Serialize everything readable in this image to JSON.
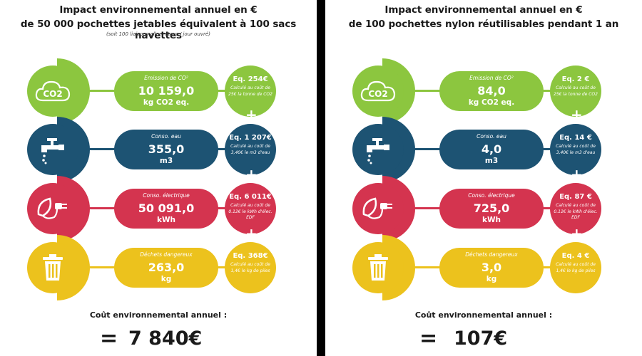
{
  "panels": [
    {
      "title_line1": "Impact environnemental annuel en €",
      "title_line2": "de 50 000 pochettes jetables équivalent à 100 sacs navettes",
      "subtitle": "(soit 100 liaisons aller-retour / jour ouvré)",
      "rows": [
        {
          "label": "Emission de CO²",
          "value": "10 159,0",
          "unit": "kg CO2 eq.",
          "cost": "Eq. 254€",
          "note": "Calculé au coût de 25€ la tonne de CO2"
        },
        {
          "label": "Conso. eau",
          "value": "355,0",
          "unit": "m3",
          "cost": "Eq. 1 207€",
          "note": "Calculé au coût de 3,40€ le m3 d'eau"
        },
        {
          "label": "Conso. électrique",
          "value": "50 091,0",
          "unit": "kWh",
          "cost": "Eq. 6 011€",
          "note": "Calculé au coût de 0.12€ le kWh d'élec. EDF"
        },
        {
          "label": "Déchets dangereux",
          "value": "263,0",
          "unit": "kg",
          "cost": "Eq. 368€",
          "note": "Calculé au coût de 1,4€ le kg de piles"
        }
      ],
      "plus": "+",
      "total_label": "Coût environnemental annuel :",
      "equals": "=",
      "total": "7 840€"
    },
    {
      "title_line1": "Impact environnemental annuel en €",
      "title_line2": "de 100 pochettes nylon réutilisables pendant 1 an",
      "rows": [
        {
          "label": "Emission de CO²",
          "value": "84,0",
          "unit": "kg CO2 eq.",
          "cost": "Eq. 2 €",
          "note": "Calculé au coût de 25€ la tonne de CO2"
        },
        {
          "label": "Conso. eau",
          "value": "4,0",
          "unit": "m3",
          "cost": "Eq. 14 €",
          "note": "Calculé au coût de 3,40€ le m3 d'eau"
        },
        {
          "label": "Conso. électrique",
          "value": "725,0",
          "unit": "kWh",
          "cost": "Eq. 87 €",
          "note": "Calculé au coût de 0.12€ le kWh d'élec. EDF"
        },
        {
          "label": "Déchets dangereux",
          "value": "3,0",
          "unit": "kg",
          "cost": "Eq. 4 €",
          "note": "Calculé au coût de 1,4€ le kg de piles"
        }
      ],
      "plus": "+",
      "total_label": "Coût environnemental annuel :",
      "equals": "=",
      "total": "107€"
    }
  ],
  "icons": {
    "co2_text": "CO2"
  },
  "colors": {
    "green": "#8cc63f",
    "blue": "#1d5373",
    "red": "#d4344f",
    "yellow": "#ecc21d"
  }
}
